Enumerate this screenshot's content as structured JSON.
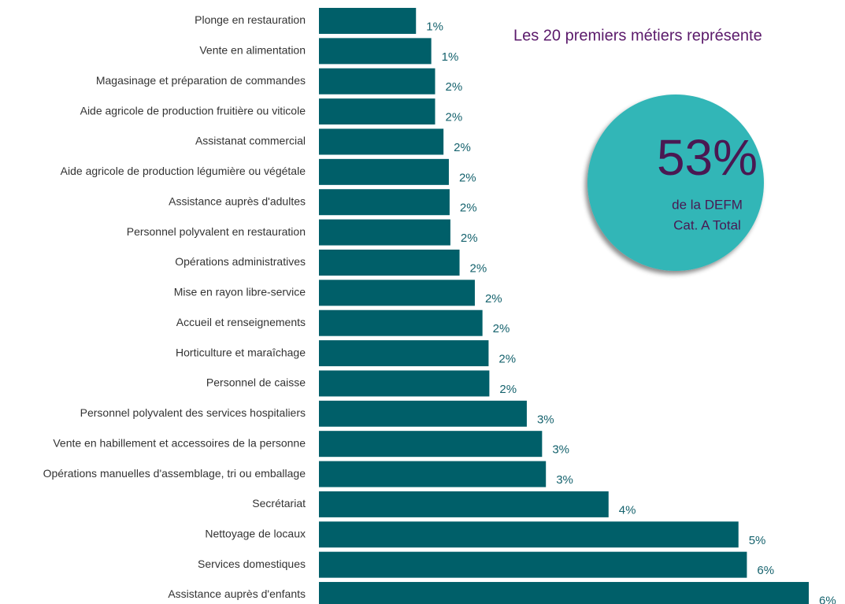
{
  "chart_data": {
    "type": "barh",
    "title": "Les 20 premiers métiers représente",
    "callout": {
      "headline": "53%",
      "lines": [
        "de la DEFM",
        "Cat. A Total"
      ],
      "color": "#33b6b7",
      "text_color": "#4a1852"
    },
    "color": "#005f69",
    "categories": [
      "Plonge en restauration",
      "Vente en alimentation",
      "Magasinage et préparation de commandes",
      "Aide agricole de production fruitière ou viticole",
      "Assistanat commercial",
      "Aide agricole de production légumière ou végétale",
      "Assistance auprès d'adultes",
      "Personnel polyvalent en restauration",
      "Opérations administratives",
      "Mise en rayon libre-service",
      "Accueil et renseignements",
      "Horticulture et maraîchage",
      "Personnel de caisse",
      "Personnel polyvalent des services hospitaliers",
      "Vente en habillement et accessoires de la personne",
      "Opérations manuelles d'assemblage, tri ou emballage",
      "Secrétariat",
      "Nettoyage de locaux",
      "Services domestiques",
      "Assistance auprès d'enfants"
    ],
    "values": [
      1.27,
      1.47,
      1.52,
      1.52,
      1.63,
      1.7,
      1.71,
      1.72,
      1.84,
      2.04,
      2.14,
      2.22,
      2.23,
      2.72,
      2.92,
      2.97,
      3.79,
      5.49,
      5.6,
      6.41
    ],
    "value_labels": [
      "1%",
      "1%",
      "2%",
      "2%",
      "2%",
      "2%",
      "2%",
      "2%",
      "2%",
      "2%",
      "2%",
      "2%",
      "2%",
      "3%",
      "3%",
      "3%",
      "4%",
      "5%",
      "6%",
      "6%"
    ]
  }
}
